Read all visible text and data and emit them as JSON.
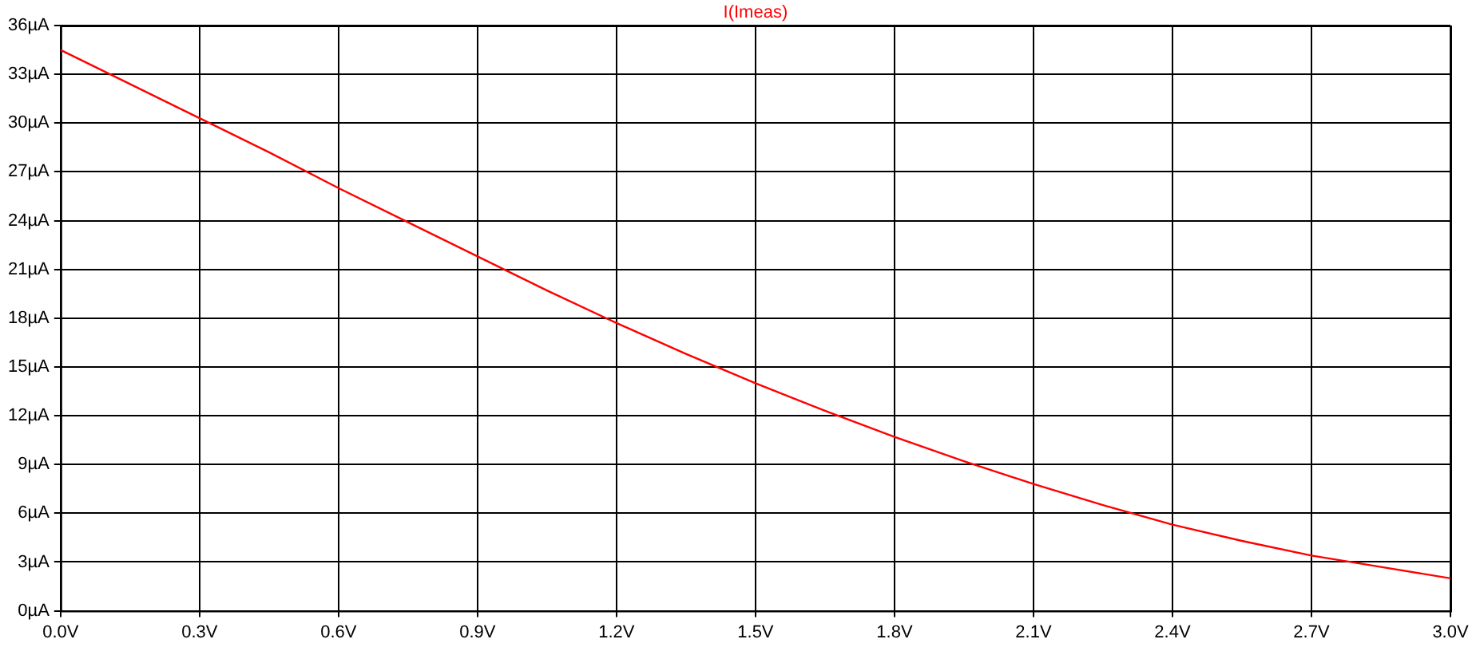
{
  "chart_data": {
    "type": "line",
    "x": [
      0,
      0.15,
      0.3,
      0.45,
      0.6,
      0.75,
      0.9,
      1.05,
      1.2,
      1.35,
      1.5,
      1.65,
      1.8,
      1.95,
      2.1,
      2.25,
      2.4,
      2.55,
      2.7,
      2.85,
      3.0
    ],
    "series": [
      {
        "name": "I(Imeas)",
        "color": "#ff0000",
        "values": [
          34.5,
          32.4,
          30.3,
          28.2,
          26.0,
          23.9,
          21.8,
          19.7,
          17.7,
          15.8,
          14.0,
          12.3,
          10.7,
          9.2,
          7.8,
          6.5,
          5.3,
          4.3,
          3.4,
          2.7,
          2.0
        ]
      }
    ],
    "xlim": [
      0,
      3.0
    ],
    "ylim": [
      0,
      36
    ],
    "xticks": [
      {
        "value": 0,
        "label": "0.0V"
      },
      {
        "value": 0.3,
        "label": "0.3V"
      },
      {
        "value": 0.6,
        "label": "0.6V"
      },
      {
        "value": 0.9,
        "label": "0.9V"
      },
      {
        "value": 1.2,
        "label": "1.2V"
      },
      {
        "value": 1.5,
        "label": "1.5V"
      },
      {
        "value": 1.8,
        "label": "1.8V"
      },
      {
        "value": 2.1,
        "label": "2.1V"
      },
      {
        "value": 2.4,
        "label": "2.4V"
      },
      {
        "value": 2.7,
        "label": "2.7V"
      },
      {
        "value": 3.0,
        "label": "3.0V"
      }
    ],
    "yticks": [
      {
        "value": 0,
        "label": "0µA"
      },
      {
        "value": 3,
        "label": "3µA"
      },
      {
        "value": 6,
        "label": "6µA"
      },
      {
        "value": 9,
        "label": "9µA"
      },
      {
        "value": 12,
        "label": "12µA"
      },
      {
        "value": 15,
        "label": "15µA"
      },
      {
        "value": 18,
        "label": "18µA"
      },
      {
        "value": 21,
        "label": "21µA"
      },
      {
        "value": 24,
        "label": "24µA"
      },
      {
        "value": 27,
        "label": "27µA"
      },
      {
        "value": 30,
        "label": "30µA"
      },
      {
        "value": 33,
        "label": "33µA"
      },
      {
        "value": 36,
        "label": "36µA"
      }
    ],
    "grid": true,
    "line_style": "solid",
    "marker": "none"
  }
}
